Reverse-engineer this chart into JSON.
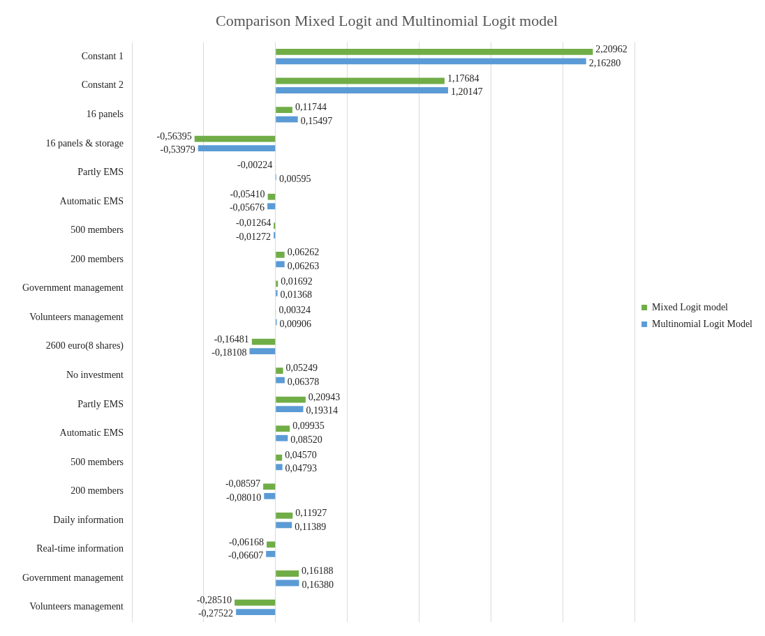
{
  "chart_data": {
    "type": "bar",
    "orientation": "horizontal",
    "title": "Comparison Mixed Logit and Multinomial Logit model",
    "categories": [
      "Constant 1",
      "Constant 2",
      "16 panels",
      "16 panels & storage",
      "Partly EMS",
      "Automatic EMS",
      "500 members",
      "200 members",
      "Government management",
      "Volunteers management",
      "2600 euro(8 shares)",
      "No investment",
      "Partly EMS",
      "Automatic EMS",
      "500 members",
      "200 members",
      "Daily information",
      "Real-time information",
      "Government management",
      "Volunteers management"
    ],
    "series": [
      {
        "name": "Mixed Logit model",
        "color": "#70ad47",
        "values": [
          2.20962,
          1.17684,
          0.11744,
          -0.56395,
          -0.00224,
          -0.0541,
          -0.01264,
          0.06262,
          0.01692,
          0.00324,
          -0.16481,
          0.05249,
          0.20943,
          0.09935,
          0.0457,
          -0.08597,
          0.11927,
          -0.06168,
          0.16188,
          -0.2851
        ],
        "value_labels": [
          "2,20962",
          "1,17684",
          "0,11744",
          "-0,56395",
          "-0,00224",
          "-0,05410",
          "-0,01264",
          "0,06262",
          "0,01692",
          "0,00324",
          "-0,16481",
          "0,05249",
          "0,20943",
          "0,09935",
          "0,04570",
          "-0,08597",
          "0,11927",
          "-0,06168",
          "0,16188",
          "-0,28510"
        ]
      },
      {
        "name": "Multinomial Logit Model",
        "color": "#5b9bd5",
        "values": [
          2.1628,
          1.20147,
          0.15497,
          -0.53979,
          0.00595,
          -0.05676,
          -0.01272,
          0.06263,
          0.01368,
          0.00906,
          -0.18108,
          0.06378,
          0.19314,
          0.0852,
          0.04793,
          -0.0801,
          0.11389,
          -0.06607,
          0.1638,
          -0.27522
        ],
        "value_labels": [
          "2,16280",
          "1,20147",
          "0,15497",
          "-0,53979",
          "0,00595",
          "-0,05676",
          "-0,01272",
          "0,06263",
          "0,01368",
          "0,00906",
          "-0,18108",
          "0,06378",
          "0,19314",
          "0,08520",
          "0,04793",
          "-0,08010",
          "0,11389",
          "-0,06607",
          "0,16380",
          "-0,27522"
        ]
      }
    ],
    "xlim": [
      -1,
      2.5
    ],
    "xticks": [
      {
        "value": -1,
        "label": null
      },
      {
        "value": -0.5,
        "label": null
      },
      {
        "value": 0,
        "label": null
      },
      {
        "value": 0.5,
        "label": null
      },
      {
        "value": 1,
        "label": null
      },
      {
        "value": 1.5,
        "label": null
      },
      {
        "value": 2,
        "label": null
      },
      {
        "value": 2.5,
        "label": null
      }
    ],
    "tick_labels": "y",
    "grid": "x",
    "legend": "right"
  }
}
